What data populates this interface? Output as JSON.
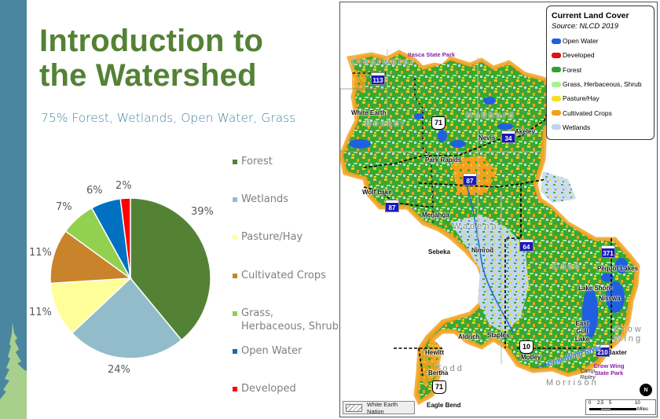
{
  "slide": {
    "title_line1": "Introduction to",
    "title_line2": "the Watershed",
    "subtitle": "75% Forest, Wetlands, Open Water, Grass"
  },
  "colors": {
    "side_band": "#4a86a0",
    "title_green": "#548235",
    "forest": "#548235",
    "wetlands": "#93bccb",
    "pasture_hay": "#ffff99",
    "cultivated_crops": "#c9832a",
    "grass": "#92d050",
    "open_water": "#0070c0",
    "developed": "#ff0000"
  },
  "chart_data": {
    "type": "pie",
    "title": "",
    "categories": [
      "Forest",
      "Wetlands",
      "Pasture/Hay",
      "Cultivated Crops",
      "Grass, Herbaceous, Shrub",
      "Open Water",
      "Developed"
    ],
    "values": [
      39,
      24,
      11,
      11,
      7,
      6,
      2
    ],
    "labels": [
      "39%",
      "24%",
      "11%",
      "11%",
      "7%",
      "6%",
      "2%"
    ],
    "colors": [
      "#548235",
      "#93bccb",
      "#ffff99",
      "#c9832a",
      "#92d050",
      "#0070c0",
      "#ff0000"
    ],
    "start_angle_deg": 0,
    "direction": "clockwise",
    "legend_position": "right"
  },
  "legend": {
    "items": [
      {
        "label": "Forest",
        "color": "#548235"
      },
      {
        "label": "Wetlands",
        "color": "#93bccb"
      },
      {
        "label": "Pasture/Hay",
        "color": "#ffff99"
      },
      {
        "label": "Cultivated Crops",
        "color": "#c9832a"
      },
      {
        "label_line1": "Grass,",
        "label_line2": "Herbaceous, Shrub",
        "color": "#92d050"
      },
      {
        "label": "Open Water",
        "color": "#0070c0"
      },
      {
        "label": "Developed",
        "color": "#ff0000"
      }
    ]
  },
  "map": {
    "legend": {
      "title": "Current Land Cover",
      "source": "Source: NLCD 2019",
      "items": [
        {
          "label": "Open Water",
          "color": "#1f5fe0"
        },
        {
          "label": "Developed",
          "color": "#e01010"
        },
        {
          "label": "Forest",
          "color": "#2ea12e"
        },
        {
          "label": "Grass, Herbaceous, Shrub",
          "color": "#a8f090"
        },
        {
          "label": "Pasture/Hay",
          "color": "#f0e020"
        },
        {
          "label": "Cultivated Crops",
          "color": "#f0a020"
        },
        {
          "label": "Wetlands",
          "color": "#c0d4f0"
        }
      ]
    },
    "counties": [
      "Clearwater",
      "Becker",
      "Hubbard",
      "Wadena",
      "Cass",
      "Crow Wing",
      "Todd",
      "Morrison"
    ],
    "parks": [
      "Itasca State Park",
      "Crow Wing State Park"
    ],
    "places": [
      "White Earth",
      "Park Rapids",
      "Nevis",
      "Akeley",
      "Wolf Lake",
      "Menahga",
      "Sebeka",
      "Nimrod",
      "Pequot Lakes",
      "Lake Shore",
      "Nisswa",
      "East Gull Lake",
      "Baxter",
      "Aldrich",
      "Staples",
      "Motley",
      "Hewitt",
      "Bertha",
      "Eagle Bend"
    ],
    "highways": {
      "state": [
        "113",
        "34",
        "87",
        "87",
        "64",
        "371",
        "210"
      ],
      "us": [
        "71",
        "10",
        "71"
      ]
    },
    "river": "Crow Wing River",
    "camp": "Camp Ripley",
    "reservation_legend": "White Earth Nation",
    "scale": {
      "ticks": [
        "0",
        "2.5",
        "5",
        "10"
      ],
      "unit": "Miles"
    },
    "north_arrow": "N"
  }
}
